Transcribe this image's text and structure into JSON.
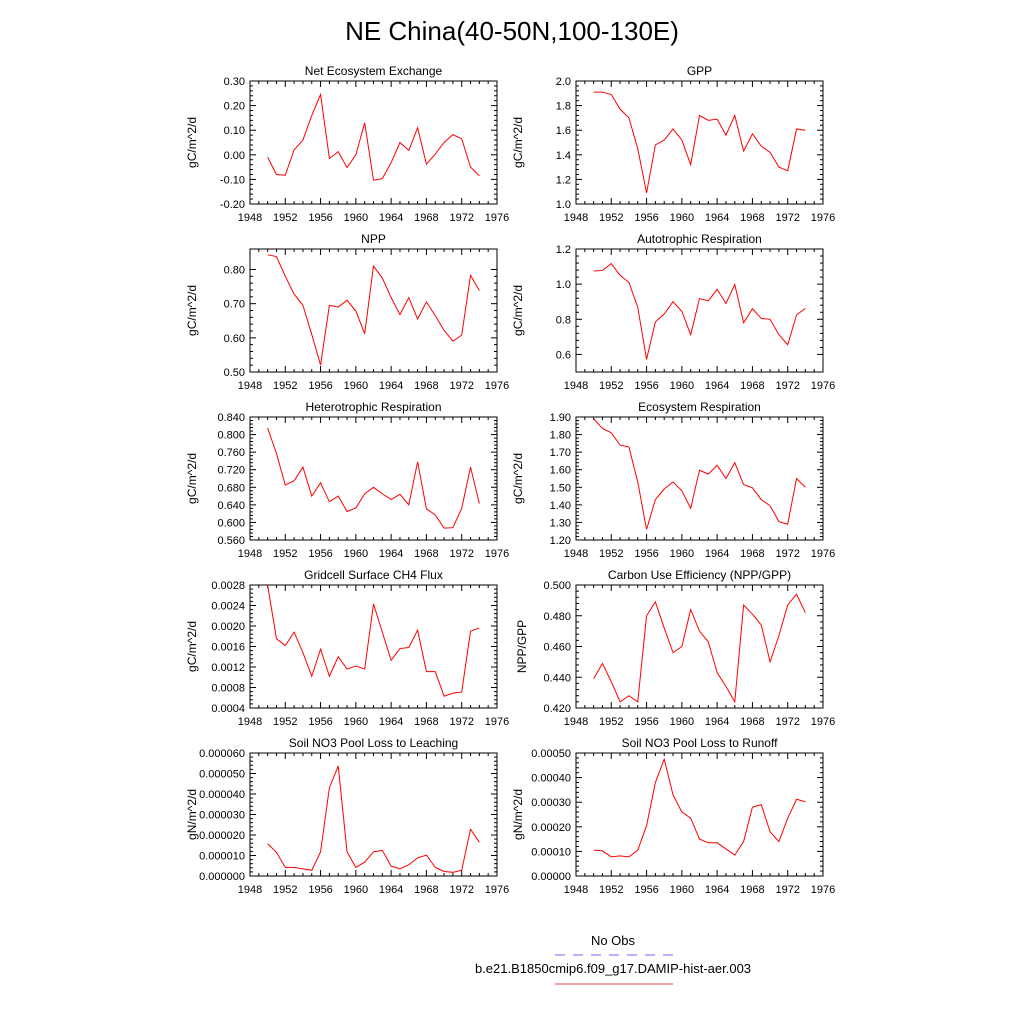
{
  "figure": {
    "title": "NE China(40-50N,100-130E)",
    "legend": {
      "placement": "bottom-center",
      "entries": [
        {
          "label": "No Obs",
          "color": "#6666ff",
          "dash": true
        },
        {
          "label": "b.e21.B1850cmip6.f09_g17.DAMIP-hist-aer.003",
          "color": "#ee4444",
          "dash": false
        }
      ]
    }
  },
  "chart_data": [
    {
      "type": "line",
      "title": "Net Ecosystem Exchange",
      "ylabel": "gC/m^2/d",
      "xlim": [
        1948,
        1976
      ],
      "ylim": [
        -0.2,
        0.3
      ],
      "grid": false,
      "xticks": [
        "1948",
        "1952",
        "1956",
        "1960",
        "1964",
        "1968",
        "1972",
        "1976"
      ],
      "yticks": [
        "-0.20",
        "-0.10",
        "0.00",
        "0.10",
        "0.20",
        "0.30"
      ],
      "series": [
        {
          "color": "#ff0000",
          "x": [
            1950,
            1951,
            1952,
            1953,
            1954,
            1955,
            1956,
            1957,
            1958,
            1959,
            1960,
            1961,
            1962,
            1963,
            1964,
            1965,
            1966,
            1967,
            1968,
            1969,
            1970,
            1971,
            1972,
            1973,
            1974
          ],
          "values": [
            -0.01,
            -0.08,
            -0.083,
            0.02,
            0.06,
            0.16,
            0.245,
            -0.015,
            0.013,
            -0.052,
            0.0,
            0.13,
            -0.103,
            -0.097,
            -0.032,
            0.05,
            0.018,
            0.11,
            -0.038,
            0.003,
            0.05,
            0.082,
            0.065,
            -0.05,
            -0.085
          ]
        }
      ]
    },
    {
      "type": "line",
      "title": "GPP",
      "ylabel": "gC/m^2/d",
      "xlim": [
        1948,
        1976
      ],
      "ylim": [
        1.0,
        2.0
      ],
      "grid": false,
      "xticks": [
        "1948",
        "1952",
        "1956",
        "1960",
        "1964",
        "1968",
        "1972",
        "1976"
      ],
      "yticks": [
        "1.0",
        "1.2",
        "1.4",
        "1.6",
        "1.8",
        "2.0"
      ],
      "series": [
        {
          "color": "#ff0000",
          "x": [
            1950,
            1951,
            1952,
            1953,
            1954,
            1955,
            1956,
            1957,
            1958,
            1959,
            1960,
            1961,
            1962,
            1963,
            1964,
            1965,
            1966,
            1967,
            1968,
            1969,
            1970,
            1971,
            1972,
            1973,
            1974
          ],
          "values": [
            1.91,
            1.91,
            1.89,
            1.77,
            1.7,
            1.45,
            1.09,
            1.48,
            1.52,
            1.61,
            1.52,
            1.32,
            1.72,
            1.68,
            1.69,
            1.56,
            1.72,
            1.43,
            1.57,
            1.47,
            1.42,
            1.3,
            1.27,
            1.61,
            1.6
          ]
        }
      ]
    },
    {
      "type": "line",
      "title": "NPP",
      "ylabel": "gC/m^2/d",
      "xlim": [
        1948,
        1976
      ],
      "ylim": [
        0.5,
        0.86
      ],
      "grid": false,
      "xticks": [
        "1948",
        "1952",
        "1956",
        "1960",
        "1964",
        "1968",
        "1972",
        "1976"
      ],
      "yticks": [
        "0.50",
        "0.60",
        "0.70",
        "0.80"
      ],
      "series": [
        {
          "color": "#ff0000",
          "x": [
            1950,
            1951,
            1952,
            1953,
            1954,
            1955,
            1956,
            1957,
            1958,
            1959,
            1960,
            1961,
            1962,
            1963,
            1964,
            1965,
            1966,
            1967,
            1968,
            1969,
            1970,
            1971,
            1972,
            1973,
            1974
          ],
          "values": [
            0.843,
            0.838,
            0.78,
            0.728,
            0.695,
            0.61,
            0.52,
            0.695,
            0.69,
            0.71,
            0.678,
            0.612,
            0.81,
            0.775,
            0.718,
            0.668,
            0.718,
            0.655,
            0.705,
            0.665,
            0.622,
            0.59,
            0.608,
            0.783,
            0.738
          ]
        }
      ]
    },
    {
      "type": "line",
      "title": "Autotrophic Respiration",
      "ylabel": "gC/m^2/d",
      "xlim": [
        1948,
        1976
      ],
      "ylim": [
        0.5,
        1.2
      ],
      "grid": false,
      "xticks": [
        "1948",
        "1952",
        "1956",
        "1960",
        "1964",
        "1968",
        "1972",
        "1976"
      ],
      "yticks": [
        "0.6",
        "0.8",
        "1.0",
        "1.2"
      ],
      "series": [
        {
          "color": "#ff0000",
          "x": [
            1950,
            1951,
            1952,
            1953,
            1954,
            1955,
            1956,
            1957,
            1958,
            1959,
            1960,
            1961,
            1962,
            1963,
            1964,
            1965,
            1966,
            1967,
            1968,
            1969,
            1970,
            1971,
            1972,
            1973,
            1974
          ],
          "values": [
            1.075,
            1.078,
            1.117,
            1.05,
            1.01,
            0.868,
            0.572,
            0.785,
            0.83,
            0.9,
            0.845,
            0.712,
            0.918,
            0.905,
            0.97,
            0.89,
            0.998,
            0.78,
            0.86,
            0.805,
            0.8,
            0.712,
            0.655,
            0.825,
            0.862
          ]
        }
      ]
    },
    {
      "type": "line",
      "title": "Heterotrophic Respiration",
      "ylabel": "gC/m^2/d",
      "xlim": [
        1948,
        1976
      ],
      "ylim": [
        0.56,
        0.84
      ],
      "grid": false,
      "xticks": [
        "1948",
        "1952",
        "1956",
        "1960",
        "1964",
        "1968",
        "1972",
        "1976"
      ],
      "yticks": [
        "0.560",
        "0.600",
        "0.640",
        "0.680",
        "0.720",
        "0.760",
        "0.800",
        "0.840"
      ],
      "series": [
        {
          "color": "#ff0000",
          "x": [
            1950,
            1951,
            1952,
            1953,
            1954,
            1955,
            1956,
            1957,
            1958,
            1959,
            1960,
            1961,
            1962,
            1963,
            1964,
            1965,
            1966,
            1967,
            1968,
            1969,
            1970,
            1971,
            1972,
            1973,
            1974
          ],
          "values": [
            0.815,
            0.757,
            0.685,
            0.695,
            0.726,
            0.66,
            0.69,
            0.647,
            0.66,
            0.625,
            0.633,
            0.665,
            0.68,
            0.665,
            0.652,
            0.664,
            0.64,
            0.738,
            0.631,
            0.617,
            0.587,
            0.588,
            0.632,
            0.726,
            0.643
          ]
        }
      ]
    },
    {
      "type": "line",
      "title": "Ecosystem Respiration",
      "ylabel": "gC/m^2/d",
      "xlim": [
        1948,
        1976
      ],
      "ylim": [
        1.2,
        1.9
      ],
      "grid": false,
      "xticks": [
        "1948",
        "1952",
        "1956",
        "1960",
        "1964",
        "1968",
        "1972",
        "1976"
      ],
      "yticks": [
        "1.20",
        "1.30",
        "1.40",
        "1.50",
        "1.60",
        "1.70",
        "1.80",
        "1.90"
      ],
      "series": [
        {
          "color": "#ff0000",
          "x": [
            1950,
            1951,
            1952,
            1953,
            1954,
            1955,
            1956,
            1957,
            1958,
            1959,
            1960,
            1961,
            1962,
            1963,
            1964,
            1965,
            1966,
            1967,
            1968,
            1969,
            1970,
            1971,
            1972,
            1973,
            1974
          ],
          "values": [
            1.89,
            1.835,
            1.81,
            1.74,
            1.73,
            1.53,
            1.26,
            1.43,
            1.49,
            1.53,
            1.48,
            1.38,
            1.597,
            1.575,
            1.625,
            1.55,
            1.64,
            1.515,
            1.497,
            1.43,
            1.395,
            1.305,
            1.29,
            1.55,
            1.5
          ]
        }
      ]
    },
    {
      "type": "line",
      "title": "Gridcell Surface CH4 Flux",
      "ylabel": "gC/m^2/d",
      "xlim": [
        1948,
        1976
      ],
      "ylim": [
        0.0004,
        0.0028
      ],
      "grid": false,
      "xticks": [
        "1948",
        "1952",
        "1956",
        "1960",
        "1964",
        "1968",
        "1972",
        "1976"
      ],
      "yticks": [
        "0.0004",
        "0.0008",
        "0.0012",
        "0.0016",
        "0.0020",
        "0.0024",
        "0.0028"
      ],
      "series": [
        {
          "color": "#ff0000",
          "x": [
            1950,
            1951,
            1952,
            1953,
            1954,
            1955,
            1956,
            1957,
            1958,
            1959,
            1960,
            1961,
            1962,
            1963,
            1964,
            1965,
            1966,
            1967,
            1968,
            1969,
            1970,
            1971,
            1972,
            1973,
            1974
          ],
          "values": [
            0.0028,
            0.00175,
            0.00162,
            0.00188,
            0.00148,
            0.00102,
            0.00155,
            0.00102,
            0.0014,
            0.00116,
            0.00122,
            0.00116,
            0.00243,
            0.00188,
            0.00133,
            0.00156,
            0.00158,
            0.00192,
            0.00111,
            0.00111,
            0.00063,
            0.00069,
            0.00071,
            0.0019,
            0.00196
          ]
        }
      ]
    },
    {
      "type": "line",
      "title": "Carbon Use Efficiency (NPP/GPP)",
      "ylabel": "NPP/GPP",
      "xlim": [
        1948,
        1976
      ],
      "ylim": [
        0.42,
        0.5
      ],
      "grid": false,
      "xticks": [
        "1948",
        "1952",
        "1956",
        "1960",
        "1964",
        "1968",
        "1972",
        "1976"
      ],
      "yticks": [
        "0.420",
        "0.440",
        "0.460",
        "0.480",
        "0.500"
      ],
      "series": [
        {
          "color": "#ff0000",
          "x": [
            1950,
            1951,
            1952,
            1953,
            1954,
            1955,
            1956,
            1957,
            1958,
            1959,
            1960,
            1961,
            1962,
            1963,
            1964,
            1965,
            1966,
            1967,
            1968,
            1969,
            1970,
            1971,
            1972,
            1973,
            1974
          ],
          "values": [
            0.439,
            0.449,
            0.437,
            0.424,
            0.428,
            0.424,
            0.48,
            0.489,
            0.472,
            0.456,
            0.46,
            0.484,
            0.47,
            0.463,
            0.443,
            0.434,
            0.424,
            0.487,
            0.481,
            0.474,
            0.45,
            0.467,
            0.487,
            0.494,
            0.482
          ]
        }
      ]
    },
    {
      "type": "line",
      "title": "Soil NO3 Pool Loss to Leaching",
      "ylabel": "gN/m^2/d",
      "xlim": [
        1948,
        1976
      ],
      "ylim": [
        0.0,
        6e-05
      ],
      "grid": false,
      "xticks": [
        "1948",
        "1952",
        "1956",
        "1960",
        "1964",
        "1968",
        "1972",
        "1976"
      ],
      "yticks": [
        "0.000000",
        "0.000010",
        "0.000020",
        "0.000030",
        "0.000040",
        "0.000050",
        "0.000060"
      ],
      "series": [
        {
          "color": "#ff0000",
          "x": [
            1950,
            1951,
            1952,
            1953,
            1954,
            1955,
            1956,
            1957,
            1958,
            1959,
            1960,
            1961,
            1962,
            1963,
            1964,
            1965,
            1966,
            1967,
            1968,
            1969,
            1970,
            1971,
            1972,
            1973,
            1974
          ],
          "values": [
            1.58e-05,
            1.15e-05,
            4.2e-06,
            4.2e-06,
            3.5e-06,
            2.8e-06,
            1.18e-05,
            4.3e-05,
            5.37e-05,
            1.18e-05,
            4.2e-06,
            6.8e-06,
            1.18e-05,
            1.25e-05,
            4.8e-06,
            3.5e-06,
            5.5e-06,
            8.8e-06,
            1.02e-05,
            4.2e-06,
            2.2e-06,
            1.8e-06,
            2.8e-06,
            2.28e-05,
            1.65e-05
          ]
        }
      ]
    },
    {
      "type": "line",
      "title": "Soil NO3 Pool Loss to Runoff",
      "ylabel": "gN/m^2/d",
      "xlim": [
        1948,
        1976
      ],
      "ylim": [
        0.0,
        0.0005
      ],
      "grid": false,
      "xticks": [
        "1948",
        "1952",
        "1956",
        "1960",
        "1964",
        "1968",
        "1972",
        "1976"
      ],
      "yticks": [
        "0.00000",
        "0.00010",
        "0.00020",
        "0.00030",
        "0.00040",
        "0.00050"
      ],
      "series": [
        {
          "color": "#ff0000",
          "x": [
            1950,
            1951,
            1952,
            1953,
            1954,
            1955,
            1956,
            1957,
            1958,
            1959,
            1960,
            1961,
            1962,
            1963,
            1964,
            1965,
            1966,
            1967,
            1968,
            1969,
            1970,
            1971,
            1972,
            1973,
            1974
          ],
          "values": [
            0.000105,
            0.000102,
            7.8e-05,
            8.2e-05,
            7.8e-05,
            0.000105,
            0.000205,
            0.00038,
            0.000475,
            0.00033,
            0.00026,
            0.000235,
            0.00015,
            0.000135,
            0.000135,
            0.00011,
            8.5e-05,
            0.00014,
            0.00028,
            0.00029,
            0.00018,
            0.00014,
            0.000235,
            0.000312,
            0.000302
          ]
        }
      ]
    }
  ]
}
